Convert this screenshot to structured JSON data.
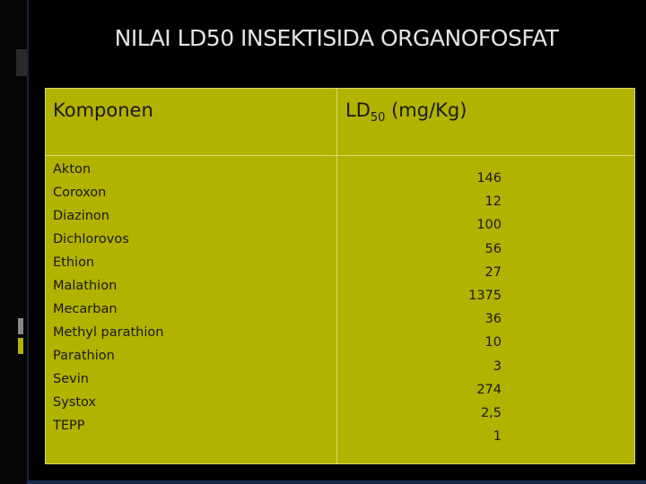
{
  "title": "NILAI LD50 INSEKTISIDA ORGANOFOSFAT",
  "table": {
    "header": {
      "column1": "Komponen",
      "column2": {
        "prefix": "LD",
        "subscript": "50",
        "suffix": "(mg/Kg)"
      }
    },
    "components": [
      "Akton",
      "Coroxon",
      "Diazinon",
      "Dichlorovos",
      "Ethion",
      "Malathion",
      "Mecarban",
      "Methyl parathion",
      "Parathion",
      "Sevin",
      "Systox",
      "TEPP"
    ],
    "ld50": [
      "146",
      "12",
      "100",
      "56",
      "27",
      "1375",
      "36",
      "10",
      "3",
      "274",
      "2,5",
      "1"
    ]
  }
}
